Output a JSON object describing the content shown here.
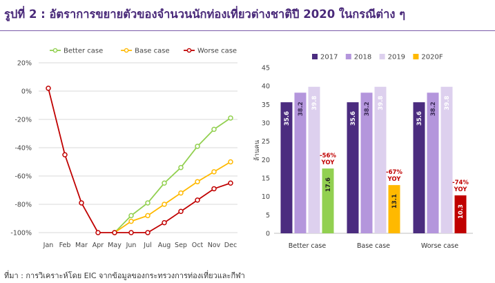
{
  "title": "รูปที่ 2 : อัตราการขยายตัวของจำนวนนักท่องเที่ยวต่างชาติปี 2020 ในกรณีต่าง ๆ",
  "source": "ที่มา : การวิเคราะห์โดย EIC จากข้อมูลของกระทรวงการท่องเที่ยวและกีฬา",
  "chart_data": [
    {
      "type": "line",
      "x": [
        "Jan",
        "Feb",
        "Mar",
        "Apr",
        "May",
        "Jun",
        "Jul",
        "Aug",
        "Sep",
        "Oct",
        "Nov",
        "Dec"
      ],
      "ylim": [
        -100,
        20
      ],
      "yticks": [
        "20%",
        "0%",
        "-20%",
        "-40%",
        "-60%",
        "-80%",
        "-100%"
      ],
      "ytick_values": [
        20,
        0,
        -20,
        -40,
        -60,
        -80,
        -100
      ],
      "legend_position": "top",
      "grid": "horizontal",
      "series": [
        {
          "name": "Better case",
          "color": "#92d050",
          "values": [
            null,
            null,
            null,
            null,
            -100,
            -88,
            -79,
            -65,
            -54,
            -39,
            -27,
            -19
          ]
        },
        {
          "name": "Base case",
          "color": "#ffb900",
          "values": [
            null,
            null,
            null,
            null,
            -100,
            -92,
            -88,
            -80,
            -72,
            -64,
            -57,
            -50
          ]
        },
        {
          "name": "Worse case",
          "color": "#c00000",
          "values": [
            2,
            -45,
            -79,
            -100,
            -100,
            -100,
            -100,
            -93,
            -85,
            -77,
            -69,
            -65
          ]
        }
      ]
    },
    {
      "type": "bar",
      "categories": [
        "Better case",
        "Base case",
        "Worse case"
      ],
      "ylabel": "ล้านคน",
      "ylim": [
        0,
        45
      ],
      "yticks": [
        0,
        5,
        10,
        15,
        20,
        25,
        30,
        35,
        40,
        45
      ],
      "legend_position": "top",
      "grid": "none",
      "legend": [
        {
          "name": "2017",
          "color": "#4b2c7f"
        },
        {
          "name": "2018",
          "color": "#b496dc"
        },
        {
          "name": "2019",
          "color": "#ddd0ee"
        },
        {
          "name": "2020F",
          "color": "#ffb900"
        }
      ],
      "groups": [
        {
          "category": "Better case",
          "values": [
            35.6,
            38.2,
            39.8,
            17.6
          ],
          "labels": [
            "35.6",
            "38.2",
            "39.8",
            "17.6"
          ],
          "forecast_color": "#92d050",
          "yoy": "-56%",
          "yoy_unit": "YOY"
        },
        {
          "category": "Base case",
          "values": [
            35.6,
            38.2,
            39.8,
            13.1
          ],
          "labels": [
            "35.6",
            "38.2",
            "39.8",
            "13.1"
          ],
          "forecast_color": "#ffb900",
          "yoy": "-67%",
          "yoy_unit": "YOY"
        },
        {
          "category": "Worse case",
          "values": [
            35.6,
            38.2,
            39.8,
            10.3
          ],
          "labels": [
            "35.6",
            "38.2",
            "39.8",
            "10.3"
          ],
          "forecast_color": "#c00000",
          "yoy": "-74%",
          "yoy_unit": "YOY"
        }
      ]
    }
  ]
}
